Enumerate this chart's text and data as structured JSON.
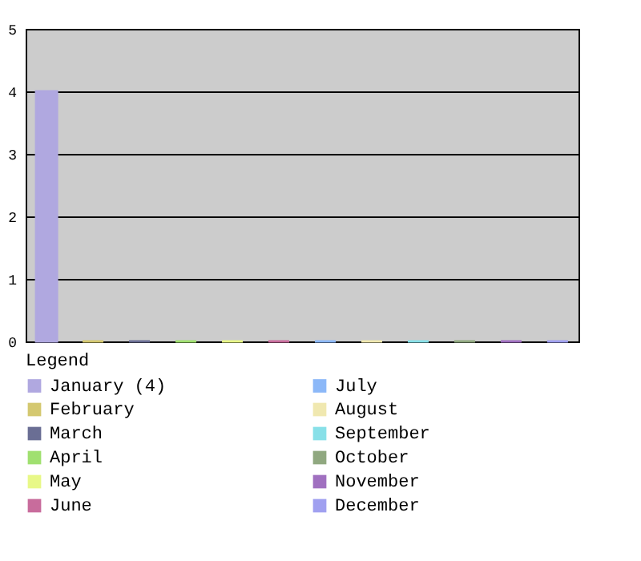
{
  "chart_data": {
    "type": "bar",
    "categories": [
      null
    ],
    "legend_title": "Legend",
    "legend": "bottom",
    "grid": "y",
    "ylim": [
      0,
      5
    ],
    "yticks": [
      0,
      1,
      2,
      3,
      4,
      5
    ],
    "series": [
      {
        "name": "January (4)",
        "color": "#b0a8e0",
        "values": [
          4
        ]
      },
      {
        "name": "February",
        "color": "#d4c870",
        "values": [
          0
        ]
      },
      {
        "name": "March",
        "color": "#6a6e94",
        "values": [
          0
        ]
      },
      {
        "name": "April",
        "color": "#a0e070",
        "values": [
          0
        ]
      },
      {
        "name": "May",
        "color": "#e8f888",
        "values": [
          0
        ]
      },
      {
        "name": "June",
        "color": "#c86c9c",
        "values": [
          0
        ]
      },
      {
        "name": "July",
        "color": "#8cb8f8",
        "values": [
          0
        ]
      },
      {
        "name": "August",
        "color": "#f0e8b0",
        "values": [
          0
        ]
      },
      {
        "name": "September",
        "color": "#88e0e8",
        "values": [
          0
        ]
      },
      {
        "name": "October",
        "color": "#90a880",
        "values": [
          0
        ]
      },
      {
        "name": "November",
        "color": "#a070c0",
        "values": [
          0
        ]
      },
      {
        "name": "December",
        "color": "#a0a0f0",
        "values": [
          0
        ]
      }
    ]
  }
}
